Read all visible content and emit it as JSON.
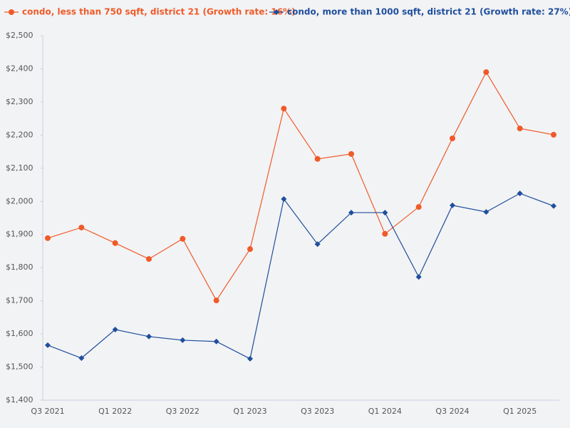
{
  "chart_data": {
    "type": "line",
    "categories": [
      "Q3 2021",
      null,
      "Q1 2022",
      null,
      "Q3 2022",
      null,
      "Q1 2023",
      null,
      "Q3 2023",
      null,
      "Q1 2024",
      null,
      "Q3 2024",
      null,
      "Q1 2025",
      null
    ],
    "series": [
      {
        "name": "condo, less than 750 sqft, district 21 (Growth rate: 16%)",
        "color": "#f05a28",
        "marker": "circle",
        "values": [
          1889,
          1921,
          1874,
          1826,
          1887,
          1701,
          1856,
          2280,
          2128,
          2143,
          1902,
          1983,
          2190,
          2390,
          2220,
          2201
        ]
      },
      {
        "name": "condo, more than 1000 sqft, district 21 (Growth rate: 27%)",
        "color": "#1f4e9c",
        "marker": "diamond",
        "values": [
          1566,
          1527,
          1613,
          1592,
          1581,
          1577,
          1525,
          2007,
          1871,
          1966,
          1966,
          1772,
          1988,
          1968,
          2024,
          1986
        ]
      }
    ],
    "ylim": [
      1400,
      2500
    ],
    "yticks": [
      {
        "value": 1400,
        "label": "$1,400"
      },
      {
        "value": 1500,
        "label": "$1,500"
      },
      {
        "value": 1600,
        "label": "$1,600"
      },
      {
        "value": 1700,
        "label": "$1,700"
      },
      {
        "value": 1800,
        "label": "$1,800"
      },
      {
        "value": 1900,
        "label": "$1,900"
      },
      {
        "value": 2000,
        "label": "$2,000"
      },
      {
        "value": 2100,
        "label": "$2,100"
      },
      {
        "value": 2200,
        "label": "$2,200"
      },
      {
        "value": 2300,
        "label": "$2,300"
      },
      {
        "value": 2400,
        "label": "$2,400"
      },
      {
        "value": 2500,
        "label": "$2,500"
      }
    ],
    "grid": false,
    "legend": "top"
  }
}
